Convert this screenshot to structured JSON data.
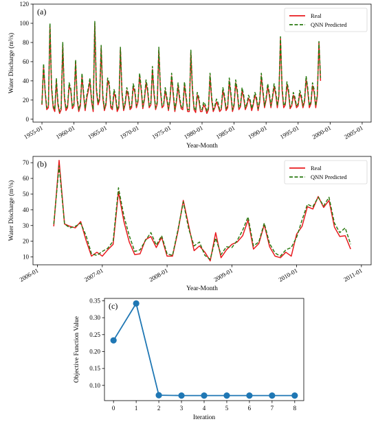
{
  "chart_data": [
    {
      "panel": "(a)",
      "type": "line",
      "xlabel": "Year-Month",
      "ylabel": "Water Discharge (m³/s)",
      "ylim": [
        -3,
        120
      ],
      "xlim": [
        1953.6,
        2006.4
      ],
      "yticks": [
        0,
        20,
        40,
        60,
        80,
        100,
        120
      ],
      "xticks": [
        1955,
        1960,
        1965,
        1970,
        1975,
        1980,
        1985,
        1990,
        1995,
        2000,
        2005
      ],
      "xtick_labels": [
        "1955-01",
        "1960-01",
        "1965-01",
        "1970-01",
        "1975-01",
        "1980-01",
        "1985-01",
        "1990-01",
        "1995-01",
        "2000-01",
        "2005-01"
      ],
      "legend": {
        "position": "top-right",
        "entries": [
          "Real",
          "QNN Predicted"
        ]
      },
      "sampling": {
        "start_year": 1955,
        "points_per_year": 4
      },
      "series": [
        {
          "name": "Real",
          "color": "#e8191d",
          "style": "solid",
          "values": [
            15,
            55,
            28,
            10,
            12,
            98,
            32,
            12,
            8,
            40,
            15,
            6,
            10,
            78,
            22,
            9,
            12,
            35,
            30,
            11,
            14,
            60,
            20,
            8,
            14,
            45,
            25,
            9,
            22,
            30,
            40,
            18,
            8,
            100,
            30,
            15,
            20,
            75,
            22,
            9,
            15,
            40,
            35,
            12,
            10,
            28,
            22,
            8,
            12,
            74,
            26,
            9,
            16,
            30,
            24,
            10,
            12,
            34,
            28,
            12,
            18,
            45,
            30,
            11,
            20,
            38,
            29,
            12,
            15,
            52,
            26,
            10,
            16,
            72,
            30,
            12,
            14,
            30,
            20,
            9,
            20,
            45,
            25,
            8,
            18,
            35,
            20,
            11,
            10,
            36,
            22,
            8,
            8,
            70,
            30,
            10,
            7,
            25,
            20,
            8,
            8,
            15,
            12,
            6,
            10,
            45,
            20,
            8,
            12,
            18,
            14,
            8,
            10,
            30,
            22,
            9,
            12,
            40,
            25,
            8,
            14,
            38,
            28,
            10,
            13,
            30,
            22,
            10,
            14,
            22,
            18,
            9,
            15,
            25,
            20,
            9,
            18,
            45,
            28,
            12,
            20,
            34,
            25,
            12,
            22,
            34,
            26,
            12,
            24,
            84,
            30,
            12,
            15,
            36,
            28,
            11,
            14,
            25,
            20,
            12,
            14,
            27,
            22,
            12,
            18,
            42,
            30,
            12,
            16,
            35,
            28,
            12,
            24,
            80,
            40
          ]
        },
        {
          "name": "QNN Predicted",
          "color": "#2a7a12",
          "style": "dashed",
          "values": [
            16,
            58,
            30,
            12,
            14,
            100,
            35,
            14,
            10,
            43,
            17,
            8,
            12,
            80,
            25,
            11,
            14,
            38,
            32,
            13,
            16,
            62,
            23,
            10,
            16,
            48,
            28,
            11,
            25,
            33,
            43,
            20,
            10,
            102,
            33,
            17,
            22,
            77,
            25,
            11,
            17,
            43,
            38,
            14,
            12,
            31,
            25,
            10,
            14,
            75,
            29,
            11,
            18,
            33,
            27,
            12,
            14,
            37,
            31,
            14,
            20,
            48,
            33,
            13,
            22,
            41,
            32,
            14,
            17,
            55,
            29,
            12,
            18,
            75,
            33,
            14,
            16,
            33,
            23,
            11,
            22,
            48,
            28,
            10,
            20,
            38,
            23,
            13,
            12,
            39,
            25,
            10,
            10,
            72,
            33,
            12,
            9,
            28,
            23,
            10,
            10,
            18,
            15,
            8,
            12,
            48,
            23,
            10,
            14,
            21,
            17,
            10,
            12,
            33,
            25,
            11,
            14,
            43,
            28,
            10,
            16,
            41,
            31,
            12,
            15,
            33,
            25,
            12,
            16,
            25,
            21,
            11,
            17,
            28,
            23,
            11,
            20,
            48,
            31,
            14,
            22,
            37,
            28,
            14,
            24,
            37,
            29,
            14,
            26,
            86,
            33,
            14,
            17,
            39,
            31,
            13,
            16,
            28,
            23,
            14,
            16,
            30,
            25,
            14,
            20,
            45,
            33,
            14,
            18,
            38,
            31,
            14,
            26,
            81,
            43
          ]
        }
      ]
    },
    {
      "panel": "(b)",
      "type": "line",
      "xlabel": "Year-Month",
      "ylabel": "Water Discharge (m³/s)",
      "ylim": [
        5,
        74
      ],
      "xlim": [
        2005.93,
        2011.15
      ],
      "yticks": [
        10,
        20,
        30,
        40,
        50,
        60,
        70
      ],
      "xticks": [
        2006,
        2007,
        2008,
        2009,
        2010,
        2011
      ],
      "xtick_labels": [
        "2006-01",
        "2007-01",
        "2008-01",
        "2009-01",
        "2010-01",
        "2011-01"
      ],
      "legend": {
        "position": "top-right",
        "entries": [
          "Real",
          "QNN Predicted"
        ]
      },
      "sampling": {
        "start_year": 2006.25,
        "points_per_year": 12
      },
      "series": [
        {
          "name": "Real",
          "color": "#e8191d",
          "style": "solid",
          "values": [
            29.5,
            71.5,
            31,
            29.5,
            28.5,
            32.5,
            20.5,
            10.5,
            13,
            10.5,
            14.5,
            18,
            51.5,
            32.5,
            19.5,
            11.5,
            12,
            21,
            23,
            16,
            22.5,
            10.5,
            10.5,
            26,
            46,
            30,
            14,
            17,
            13,
            7.5,
            25.5,
            9.5,
            14.5,
            18,
            19.5,
            23.5,
            33.5,
            15,
            18.5,
            30.5,
            16.5,
            10.5,
            9.5,
            13,
            10.5,
            24.5,
            29.5,
            42,
            40.5,
            48.5,
            41.5,
            46,
            29,
            23,
            23.5,
            15
          ]
        },
        {
          "name": "QNN Predicted",
          "color": "#2a7a12",
          "style": "dashed",
          "values": [
            31,
            68,
            31,
            28.5,
            29.5,
            31.5,
            23.5,
            12,
            11,
            13.5,
            15.5,
            20,
            54,
            36,
            23.5,
            13.5,
            14.5,
            20.5,
            25.5,
            17.5,
            23.5,
            12,
            11,
            27,
            45,
            28,
            17,
            19.5,
            11,
            8.5,
            22,
            11.5,
            16.5,
            16,
            20.5,
            27,
            35.5,
            17,
            19.5,
            31.5,
            18.5,
            12.5,
            10.5,
            14.5,
            16,
            22.5,
            33.5,
            43.5,
            42,
            48,
            42.5,
            48,
            31.5,
            25.5,
            28.5,
            18
          ]
        }
      ]
    },
    {
      "panel": "(c)",
      "type": "line",
      "xlabel": "Iteration",
      "ylabel": "Objective Function Value",
      "x": [
        0,
        1,
        2,
        3,
        4,
        5,
        6,
        7,
        8
      ],
      "xlim": [
        -0.4,
        8.4
      ],
      "ylim": [
        0.055,
        0.357
      ],
      "yticks": [
        0.1,
        0.15,
        0.2,
        0.25,
        0.3,
        0.35
      ],
      "ytick_labels": [
        "0.10",
        "0.15",
        "0.20",
        "0.25",
        "0.30",
        "0.35"
      ],
      "series": [
        {
          "color": "#1f77b4",
          "markers": true,
          "values": [
            0.233,
            0.342,
            0.071,
            0.07,
            0.07,
            0.07,
            0.07,
            0.07,
            0.07
          ]
        }
      ]
    }
  ]
}
